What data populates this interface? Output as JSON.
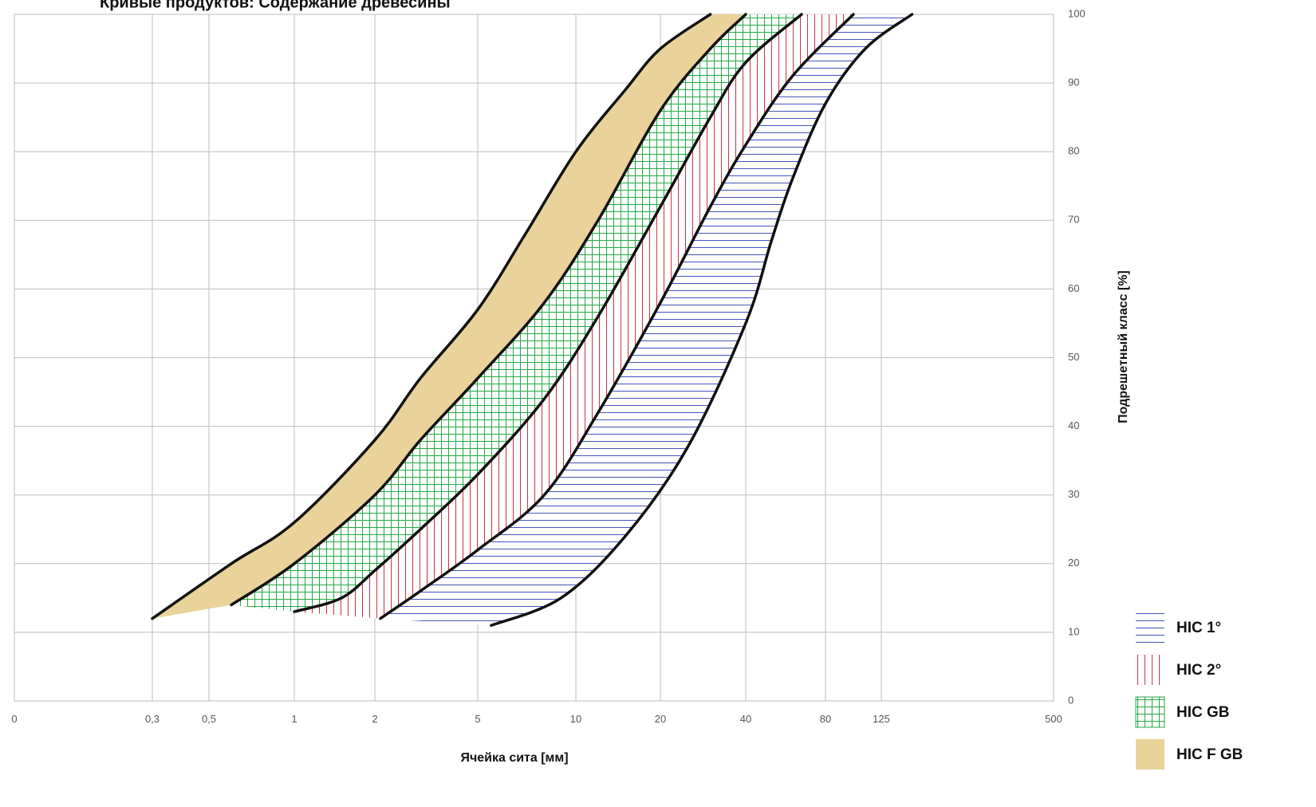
{
  "chart_data": {
    "type": "area",
    "title": "Кривые продуктов: Содержание древесины",
    "xlabel": "Ячейка сита [мм]",
    "ylabel": "Подрешетный класс [%]",
    "x_scale": "log",
    "x_ticks": [
      "0",
      "0,3",
      "0,5",
      "1",
      "2",
      "5",
      "10",
      "20",
      "40",
      "80",
      "125",
      "500"
    ],
    "y_ticks": [
      "0",
      "10",
      "20",
      "30",
      "40",
      "50",
      "60",
      "70",
      "80",
      "90",
      "100"
    ],
    "ylim": [
      0,
      100
    ],
    "grid": true,
    "legend_position": "bottom-right",
    "series": [
      {
        "name": "HIC 1°",
        "pattern": "horizontal-lines",
        "color": "#4455bb",
        "lower": [
          [
            5.5,
            11
          ],
          [
            9,
            15
          ],
          [
            15,
            24
          ],
          [
            25,
            37
          ],
          [
            40,
            55
          ],
          [
            50,
            67
          ],
          [
            60,
            76
          ],
          [
            80,
            87
          ],
          [
            110,
            95
          ],
          [
            160,
            100
          ]
        ],
        "upper": [
          [
            2.1,
            12
          ],
          [
            3,
            16
          ],
          [
            5,
            22
          ],
          [
            8,
            30
          ],
          [
            12,
            42
          ],
          [
            20,
            58
          ],
          [
            30,
            72
          ],
          [
            40,
            81
          ],
          [
            60,
            91
          ],
          [
            100,
            100
          ]
        ]
      },
      {
        "name": "HIC 2°",
        "pattern": "vertical-lines",
        "color": "#cc3344",
        "lower": [
          [
            2.1,
            12
          ],
          [
            3,
            16
          ],
          [
            5,
            22
          ],
          [
            8,
            30
          ],
          [
            12,
            42
          ],
          [
            20,
            58
          ],
          [
            30,
            72
          ],
          [
            40,
            81
          ],
          [
            60,
            91
          ],
          [
            100,
            100
          ]
        ],
        "upper": [
          [
            1,
            13
          ],
          [
            1.5,
            15
          ],
          [
            2,
            19
          ],
          [
            3,
            25
          ],
          [
            5,
            33
          ],
          [
            8,
            44
          ],
          [
            12,
            56
          ],
          [
            20,
            72
          ],
          [
            30,
            85
          ],
          [
            40,
            93
          ],
          [
            65,
            100
          ]
        ]
      },
      {
        "name": "HIC GB",
        "pattern": "grid",
        "color": "#22aa44",
        "lower": [
          [
            1,
            13
          ],
          [
            1.5,
            15
          ],
          [
            2,
            19
          ],
          [
            3,
            25
          ],
          [
            5,
            33
          ],
          [
            8,
            44
          ],
          [
            12,
            56
          ],
          [
            20,
            72
          ],
          [
            30,
            85
          ],
          [
            40,
            93
          ],
          [
            65,
            100
          ]
        ],
        "upper": [
          [
            0.6,
            14
          ],
          [
            1,
            20
          ],
          [
            2,
            30
          ],
          [
            3,
            38
          ],
          [
            5,
            47
          ],
          [
            8,
            58
          ],
          [
            12,
            70
          ],
          [
            20,
            86
          ],
          [
            30,
            95
          ],
          [
            40,
            100
          ]
        ]
      },
      {
        "name": "HIC F GB",
        "pattern": "solid",
        "color": "#e9d39a",
        "lower": [
          [
            0.6,
            14
          ],
          [
            1,
            20
          ],
          [
            2,
            30
          ],
          [
            3,
            38
          ],
          [
            5,
            47
          ],
          [
            8,
            58
          ],
          [
            12,
            70
          ],
          [
            20,
            86
          ],
          [
            30,
            95
          ],
          [
            40,
            100
          ]
        ],
        "upper": [
          [
            0.3,
            12
          ],
          [
            0.6,
            20
          ],
          [
            1,
            26
          ],
          [
            2,
            38
          ],
          [
            3,
            47
          ],
          [
            5,
            57
          ],
          [
            7,
            68
          ],
          [
            10,
            80
          ],
          [
            15,
            89
          ],
          [
            20,
            95
          ],
          [
            30,
            100
          ]
        ]
      }
    ]
  }
}
